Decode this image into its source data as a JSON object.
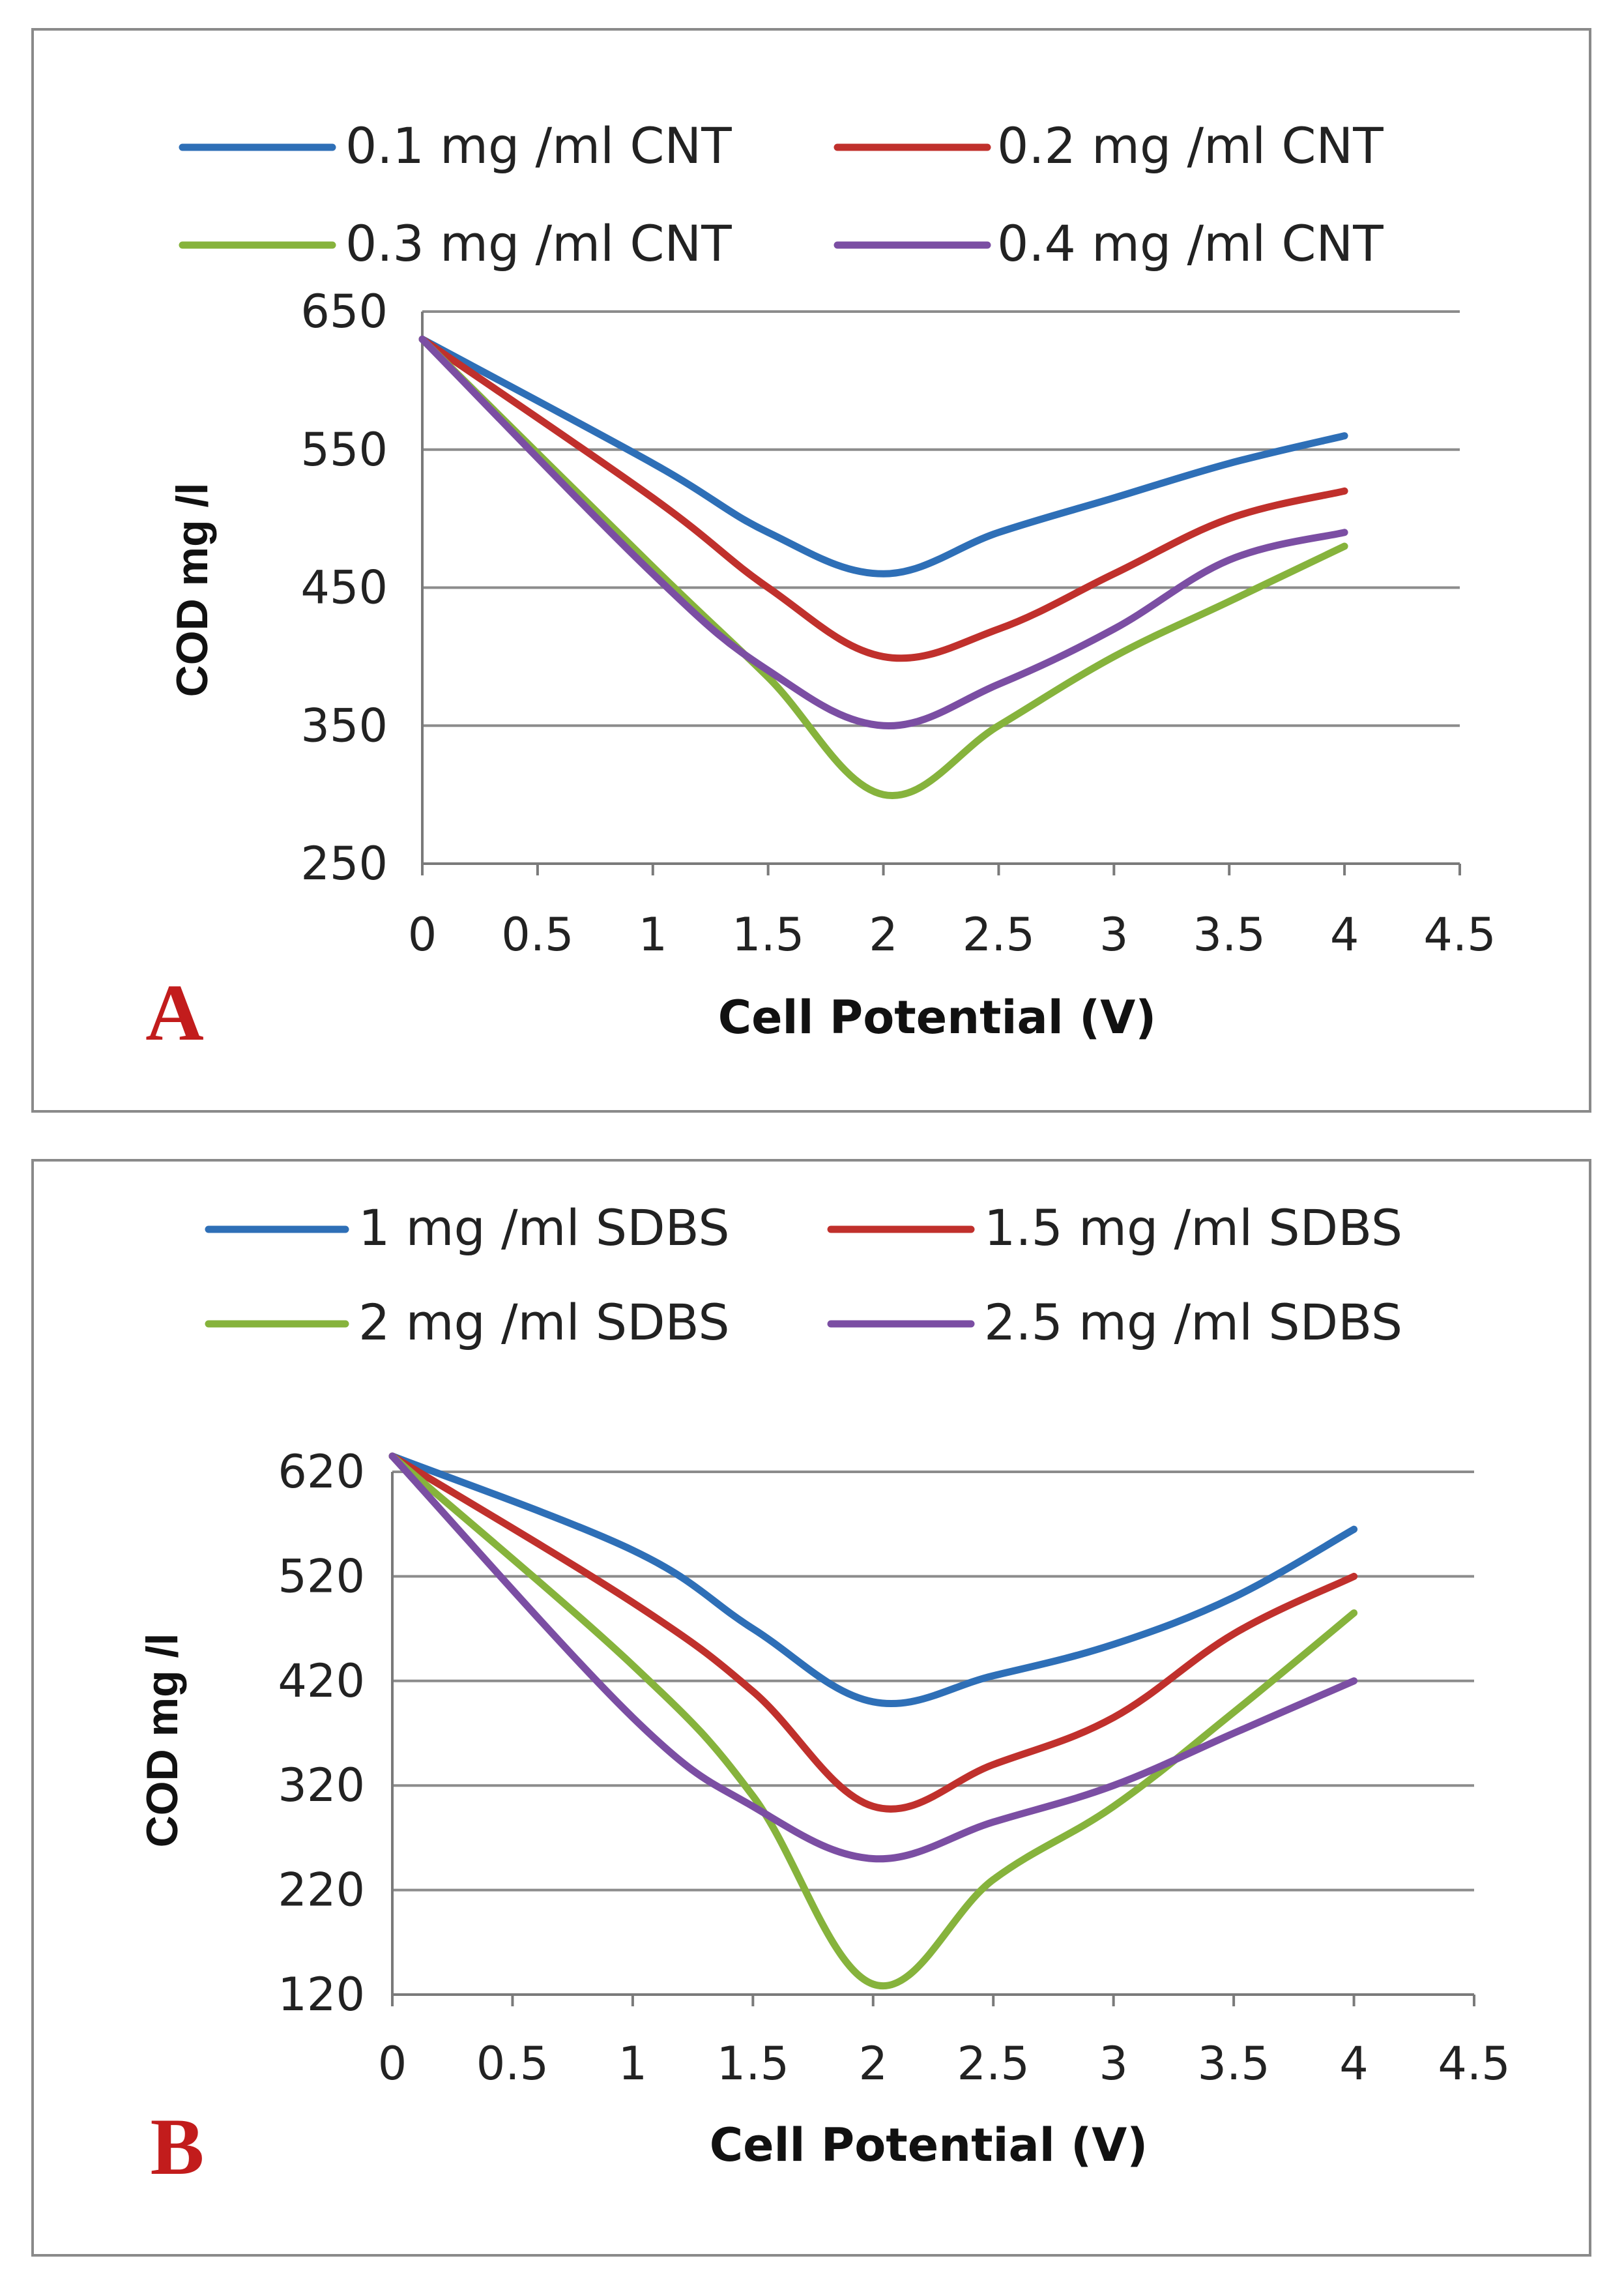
{
  "chart_data": [
    {
      "type": "line",
      "panel_label": "A",
      "xlabel": "Cell Potential  (V)",
      "ylabel": "COD mg /l",
      "xlim": [
        0,
        4.5
      ],
      "ylim": [
        250,
        650
      ],
      "xticks": [
        "0",
        "0.5",
        "1",
        "1.5",
        "2",
        "2.5",
        "3",
        "3.5",
        "4",
        "4.5"
      ],
      "yticks": [
        "650",
        "550",
        "450",
        "350",
        "250"
      ],
      "grid": "horizontal",
      "legend_position": "top",
      "x": [
        0,
        1,
        1.5,
        2,
        2.5,
        3,
        3.5,
        4
      ],
      "series": [
        {
          "name": "0.1 mg /ml CNT",
          "color": "#2e6fb7",
          "values": [
            630,
            540,
            490,
            460,
            490,
            515,
            540,
            560
          ]
        },
        {
          "name": "0.2 mg /ml CNT",
          "color": "#c0302c",
          "values": [
            630,
            515,
            450,
            400,
            420,
            460,
            500,
            520
          ]
        },
        {
          "name": "0.3 mg /ml CNT",
          "color": "#86b33c",
          "values": [
            630,
            465,
            385,
            300,
            350,
            400,
            440,
            480
          ]
        },
        {
          "name": "0.4 mg /ml CNT",
          "color": "#7b4ea3",
          "values": [
            630,
            460,
            390,
            350,
            380,
            420,
            470,
            490
          ]
        }
      ]
    },
    {
      "type": "line",
      "panel_label": "B",
      "xlabel": "Cell Potential  (V)",
      "ylabel": "COD mg /l",
      "xlim": [
        0,
        4.5
      ],
      "ylim": [
        120,
        620
      ],
      "xticks": [
        "0",
        "0.5",
        "1",
        "1.5",
        "2",
        "2.5",
        "3",
        "3.5",
        "4",
        "4.5"
      ],
      "yticks": [
        "620",
        "520",
        "420",
        "320",
        "220",
        "120"
      ],
      "grid": "horizontal",
      "legend_position": "top",
      "x": [
        0,
        1,
        1.5,
        2,
        2.5,
        3,
        3.5,
        4
      ],
      "series": [
        {
          "name": "1 mg /ml SDBS",
          "color": "#2e6fb7",
          "values": [
            635,
            545,
            470,
            400,
            425,
            455,
            500,
            565
          ]
        },
        {
          "name": "1.5 mg /ml SDBS",
          "color": "#c0302c",
          "values": [
            635,
            495,
            410,
            300,
            340,
            385,
            465,
            520
          ]
        },
        {
          "name": "2 mg /ml SDBS",
          "color": "#86b33c",
          "values": [
            635,
            435,
            310,
            130,
            230,
            300,
            390,
            485
          ]
        },
        {
          "name": "2.5 mg /ml SDBS",
          "color": "#7b4ea3",
          "values": [
            635,
            385,
            300,
            250,
            285,
            320,
            370,
            420
          ]
        }
      ]
    }
  ]
}
